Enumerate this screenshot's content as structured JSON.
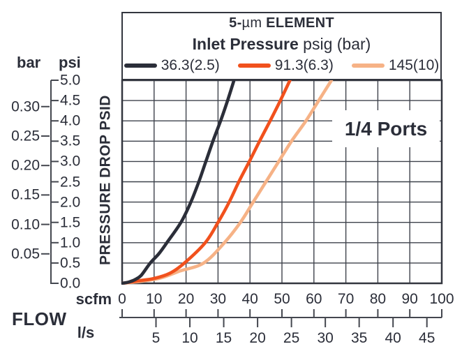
{
  "header": {
    "title_parts": {
      "p1": "5-",
      "p2": "µm",
      "p3": " ELEMENT"
    },
    "subtitle": {
      "bold": "Inlet Pressure",
      "rest": " psig (bar)"
    }
  },
  "labels": {
    "flow": "FLOW"
  },
  "chart_data": {
    "type": "line",
    "title": "5-µm ELEMENT",
    "subtitle": "Inlet Pressure psig (bar)",
    "annotation": "1/4 Ports",
    "x_axis": {
      "primary_label": "scfm",
      "primary_ticks": [
        0,
        10,
        20,
        30,
        40,
        50,
        60,
        70,
        80,
        90,
        100
      ],
      "primary_range": [
        0,
        100
      ],
      "secondary_label": "l/s",
      "secondary_ticks": [
        5,
        10,
        15,
        20,
        25,
        30,
        35,
        40,
        45
      ],
      "scfm_per_ls": 2.1189
    },
    "y_axis": {
      "label": "PRESSURE DROP PSID",
      "psi_header": "psi",
      "bar_header": "bar",
      "psi_ticks": [
        0,
        0.5,
        1,
        1.5,
        2,
        2.5,
        3,
        3.5,
        4,
        4.5,
        5
      ],
      "psi_range": [
        0,
        5
      ],
      "bar_ticks": [
        0.05,
        0.1,
        0.15,
        0.2,
        0.25,
        0.3
      ],
      "psi_per_bar": 14.5038
    },
    "grid": {
      "x_step_scfm": 10,
      "y_step_psi": 0.5,
      "grid_on": true
    },
    "colors": {
      "grid": "#3e424b",
      "frame": "#33363f",
      "axis": "#44474f",
      "text": "#2b2e39"
    },
    "series": [
      {
        "name": "145(10)",
        "color": "#f6b286",
        "points_scfm_psi": [
          [
            0,
            0
          ],
          [
            6,
            0.05
          ],
          [
            12,
            0.13
          ],
          [
            18,
            0.3
          ],
          [
            25.5,
            0.5
          ],
          [
            32,
            1.0
          ],
          [
            37,
            1.5
          ],
          [
            41,
            2.0
          ],
          [
            45,
            2.5
          ],
          [
            49,
            3.0
          ],
          [
            53,
            3.5
          ],
          [
            57.5,
            4.0
          ],
          [
            61.5,
            4.5
          ],
          [
            65.5,
            5.0
          ]
        ]
      },
      {
        "name": "91.3(6.3)",
        "color": "#f1511d",
        "points_scfm_psi": [
          [
            0,
            0
          ],
          [
            5,
            0.06
          ],
          [
            10,
            0.12
          ],
          [
            15,
            0.25
          ],
          [
            19.5,
            0.5
          ],
          [
            26,
            1.0
          ],
          [
            30,
            1.5
          ],
          [
            33.5,
            2.0
          ],
          [
            36.5,
            2.5
          ],
          [
            39.8,
            3.0
          ],
          [
            43,
            3.5
          ],
          [
            46.3,
            4.0
          ],
          [
            49.5,
            4.5
          ],
          [
            52.5,
            5.0
          ]
        ]
      },
      {
        "name": "36.3(2.5)",
        "color": "#2b2e39",
        "points_scfm_psi": [
          [
            0,
            0
          ],
          [
            2,
            0.03
          ],
          [
            4,
            0.09
          ],
          [
            6,
            0.2
          ],
          [
            8.8,
            0.5
          ],
          [
            11.5,
            0.73
          ],
          [
            14,
            1.0
          ],
          [
            18.4,
            1.5
          ],
          [
            21.5,
            2.0
          ],
          [
            24,
            2.5
          ],
          [
            26.2,
            3.0
          ],
          [
            28.4,
            3.5
          ],
          [
            30.8,
            4.0
          ],
          [
            33,
            4.5
          ],
          [
            35,
            5.0
          ]
        ]
      }
    ],
    "legend_order": [
      "36.3(2.5)",
      "91.3(6.3)",
      "145(10)"
    ]
  }
}
